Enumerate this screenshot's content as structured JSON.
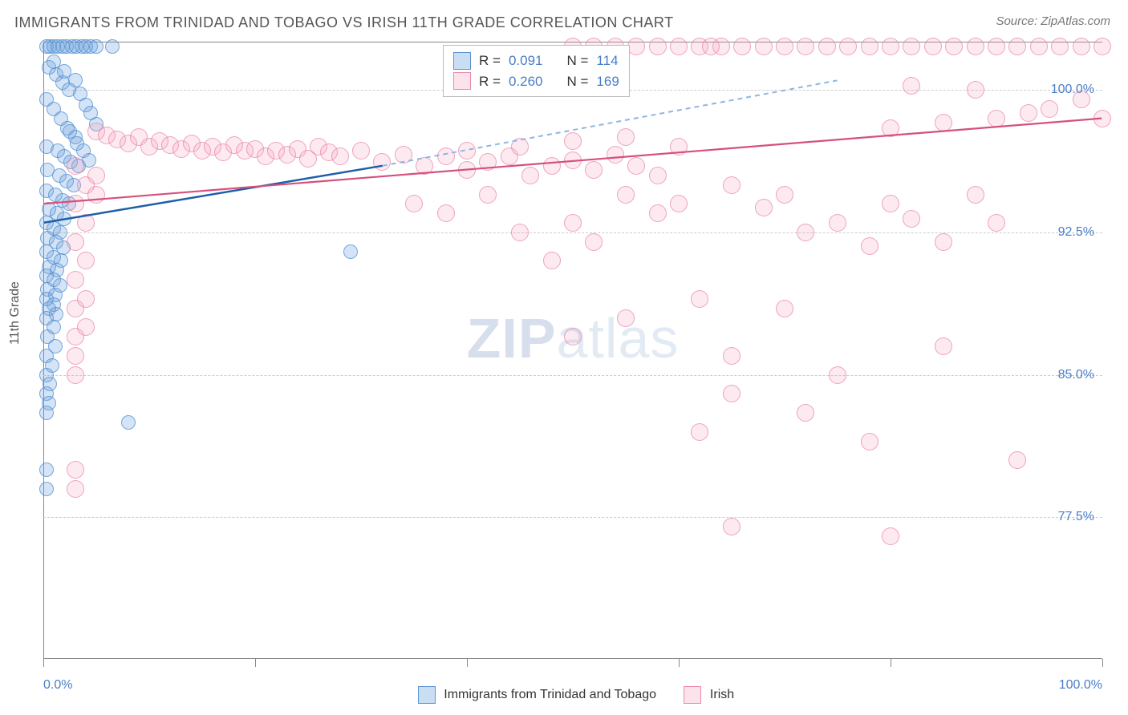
{
  "title": "IMMIGRANTS FROM TRINIDAD AND TOBAGO VS IRISH 11TH GRADE CORRELATION CHART",
  "source": "Source: ZipAtlas.com",
  "watermark_a": "ZIP",
  "watermark_b": "atlas",
  "chart": {
    "type": "scatter",
    "y_axis_title": "11th Grade",
    "background_color": "#ffffff",
    "grid_color": "#cccccc",
    "axis_color": "#888888",
    "tick_label_color": "#4a7dc7",
    "xlim": [
      0,
      100
    ],
    "ylim": [
      70,
      102.5
    ],
    "y_ticks": [
      77.5,
      85.0,
      92.5,
      100.0
    ],
    "y_tick_labels": [
      "77.5%",
      "85.0%",
      "92.5%",
      "100.0%"
    ],
    "x_ticks": [
      0,
      20,
      40,
      60,
      80,
      100
    ],
    "x_tick_labels_shown": {
      "0": "0.0%",
      "100": "100.0%"
    },
    "series": [
      {
        "name": "Immigrants from Trinidad and Tobago",
        "short": "a",
        "color_fill": "rgba(99,157,222,0.28)",
        "color_stroke": "rgba(79,139,207,0.7)",
        "marker_size": 18,
        "R": "0.091",
        "N": "114",
        "trend": {
          "x1": 0,
          "y1": 93.0,
          "x2": 32,
          "y2": 96.0,
          "extrap_x": 75,
          "extrap_y": 100.5,
          "color_solid": "#1d5fa8",
          "color_dash": "#8eb6e2"
        },
        "points": [
          [
            0.3,
            102.3
          ],
          [
            0.6,
            102.3
          ],
          [
            1.0,
            102.3
          ],
          [
            1.4,
            102.3
          ],
          [
            1.8,
            102.3
          ],
          [
            2.2,
            102.3
          ],
          [
            2.7,
            102.3
          ],
          [
            3.1,
            102.3
          ],
          [
            3.6,
            102.3
          ],
          [
            4.0,
            102.3
          ],
          [
            4.5,
            102.3
          ],
          [
            5.0,
            102.3
          ],
          [
            6.5,
            102.3
          ],
          [
            0.5,
            101.2
          ],
          [
            1.2,
            100.8
          ],
          [
            1.8,
            100.4
          ],
          [
            2.4,
            100.0
          ],
          [
            0.3,
            99.5
          ],
          [
            1.0,
            99.0
          ],
          [
            1.7,
            98.5
          ],
          [
            2.3,
            98.0
          ],
          [
            3.0,
            97.5
          ],
          [
            0.3,
            97.0
          ],
          [
            1.4,
            96.8
          ],
          [
            2.0,
            96.5
          ],
          [
            2.6,
            96.2
          ],
          [
            3.3,
            96.0
          ],
          [
            0.4,
            95.8
          ],
          [
            1.5,
            95.5
          ],
          [
            2.2,
            95.2
          ],
          [
            2.9,
            95.0
          ],
          [
            0.3,
            94.7
          ],
          [
            1.1,
            94.5
          ],
          [
            1.8,
            94.2
          ],
          [
            2.4,
            94.0
          ],
          [
            0.5,
            93.7
          ],
          [
            1.3,
            93.5
          ],
          [
            2.0,
            93.2
          ],
          [
            0.3,
            93.0
          ],
          [
            1.0,
            92.7
          ],
          [
            1.6,
            92.5
          ],
          [
            0.4,
            92.2
          ],
          [
            1.2,
            92.0
          ],
          [
            1.9,
            91.7
          ],
          [
            0.3,
            91.5
          ],
          [
            1.0,
            91.2
          ],
          [
            1.7,
            91.0
          ],
          [
            0.5,
            90.7
          ],
          [
            1.3,
            90.5
          ],
          [
            0.3,
            90.2
          ],
          [
            1.0,
            90.0
          ],
          [
            1.6,
            89.7
          ],
          [
            0.4,
            89.5
          ],
          [
            1.1,
            89.2
          ],
          [
            0.3,
            89.0
          ],
          [
            1.0,
            88.7
          ],
          [
            0.5,
            88.5
          ],
          [
            1.2,
            88.2
          ],
          [
            0.3,
            88.0
          ],
          [
            1.0,
            87.5
          ],
          [
            0.4,
            87.0
          ],
          [
            1.1,
            86.5
          ],
          [
            0.3,
            86.0
          ],
          [
            0.8,
            85.5
          ],
          [
            0.3,
            85.0
          ],
          [
            0.6,
            84.5
          ],
          [
            0.3,
            84.0
          ],
          [
            0.5,
            83.5
          ],
          [
            0.3,
            83.0
          ],
          [
            8.0,
            82.5
          ],
          [
            0.3,
            80.0
          ],
          [
            0.3,
            79.0
          ],
          [
            1.0,
            101.5
          ],
          [
            2.0,
            101.0
          ],
          [
            3.0,
            100.5
          ],
          [
            3.5,
            99.8
          ],
          [
            4.0,
            99.2
          ],
          [
            4.5,
            98.8
          ],
          [
            5.0,
            98.2
          ],
          [
            2.5,
            97.8
          ],
          [
            3.2,
            97.2
          ],
          [
            3.8,
            96.8
          ],
          [
            4.3,
            96.3
          ],
          [
            29.0,
            91.5
          ]
        ]
      },
      {
        "name": "Irish",
        "short": "b",
        "color_fill": "rgba(245,160,190,0.22)",
        "color_stroke": "rgba(232,122,158,0.65)",
        "marker_size": 22,
        "R": "0.260",
        "N": "169",
        "trend": {
          "x1": 0,
          "y1": 94.0,
          "x2": 100,
          "y2": 98.5,
          "color_solid": "#d6507c"
        },
        "points": [
          [
            58,
            102.3
          ],
          [
            60,
            102.3
          ],
          [
            62,
            102.3
          ],
          [
            64,
            102.3
          ],
          [
            66,
            102.3
          ],
          [
            68,
            102.3
          ],
          [
            70,
            102.3
          ],
          [
            72,
            102.3
          ],
          [
            74,
            102.3
          ],
          [
            76,
            102.3
          ],
          [
            78,
            102.3
          ],
          [
            80,
            102.3
          ],
          [
            82,
            102.3
          ],
          [
            84,
            102.3
          ],
          [
            86,
            102.3
          ],
          [
            88,
            102.3
          ],
          [
            90,
            102.3
          ],
          [
            92,
            102.3
          ],
          [
            94,
            102.3
          ],
          [
            96,
            102.3
          ],
          [
            98,
            102.3
          ],
          [
            100,
            102.3
          ],
          [
            56,
            102.3
          ],
          [
            54,
            102.3
          ],
          [
            52,
            102.3
          ],
          [
            50,
            102.3
          ],
          [
            63,
            102.3
          ],
          [
            100,
            98.5
          ],
          [
            98,
            99.5
          ],
          [
            95,
            99.0
          ],
          [
            93,
            98.8
          ],
          [
            90,
            98.5
          ],
          [
            88,
            100.0
          ],
          [
            85,
            98.3
          ],
          [
            82,
            100.2
          ],
          [
            80,
            98.0
          ],
          [
            5,
            97.8
          ],
          [
            6,
            97.6
          ],
          [
            7,
            97.4
          ],
          [
            8,
            97.2
          ],
          [
            9,
            97.5
          ],
          [
            10,
            97.0
          ],
          [
            11,
            97.3
          ],
          [
            12,
            97.1
          ],
          [
            13,
            96.9
          ],
          [
            14,
            97.2
          ],
          [
            15,
            96.8
          ],
          [
            16,
            97.0
          ],
          [
            17,
            96.7
          ],
          [
            18,
            97.1
          ],
          [
            19,
            96.8
          ],
          [
            20,
            96.9
          ],
          [
            21,
            96.5
          ],
          [
            22,
            96.8
          ],
          [
            23,
            96.6
          ],
          [
            24,
            96.9
          ],
          [
            25,
            96.4
          ],
          [
            26,
            97.0
          ],
          [
            27,
            96.7
          ],
          [
            28,
            96.5
          ],
          [
            30,
            96.8
          ],
          [
            32,
            96.2
          ],
          [
            34,
            96.6
          ],
          [
            36,
            96.0
          ],
          [
            38,
            96.5
          ],
          [
            40,
            95.8
          ],
          [
            42,
            96.2
          ],
          [
            44,
            96.5
          ],
          [
            46,
            95.5
          ],
          [
            48,
            96.0
          ],
          [
            50,
            96.3
          ],
          [
            52,
            95.8
          ],
          [
            54,
            96.6
          ],
          [
            56,
            96.0
          ],
          [
            58,
            95.5
          ],
          [
            40,
            96.8
          ],
          [
            45,
            97.0
          ],
          [
            50,
            97.3
          ],
          [
            55,
            97.5
          ],
          [
            60,
            97.0
          ],
          [
            35,
            94.0
          ],
          [
            38,
            93.5
          ],
          [
            42,
            94.5
          ],
          [
            45,
            92.5
          ],
          [
            48,
            91.0
          ],
          [
            50,
            93.0
          ],
          [
            52,
            92.0
          ],
          [
            55,
            94.5
          ],
          [
            58,
            93.5
          ],
          [
            60,
            94.0
          ],
          [
            65,
            95.0
          ],
          [
            68,
            93.8
          ],
          [
            70,
            94.5
          ],
          [
            72,
            92.5
          ],
          [
            75,
            93.0
          ],
          [
            78,
            91.8
          ],
          [
            80,
            94.0
          ],
          [
            82,
            93.2
          ],
          [
            85,
            92.0
          ],
          [
            88,
            94.5
          ],
          [
            90,
            93.0
          ],
          [
            62,
            89.0
          ],
          [
            70,
            88.5
          ],
          [
            55,
            88.0
          ],
          [
            65,
            86.0
          ],
          [
            75,
            85.0
          ],
          [
            85,
            86.5
          ],
          [
            50,
            87.0
          ],
          [
            3,
            96.0
          ],
          [
            3,
            94.0
          ],
          [
            3,
            92.0
          ],
          [
            3,
            90.0
          ],
          [
            3,
            88.5
          ],
          [
            3,
            87.0
          ],
          [
            3,
            86.0
          ],
          [
            3,
            85.0
          ],
          [
            3,
            80.0
          ],
          [
            3,
            79.0
          ],
          [
            4,
            95.0
          ],
          [
            4,
            93.0
          ],
          [
            4,
            91.0
          ],
          [
            4,
            89.0
          ],
          [
            4,
            87.5
          ],
          [
            5,
            95.5
          ],
          [
            5,
            94.5
          ],
          [
            65,
            77.0
          ],
          [
            80,
            76.5
          ],
          [
            78,
            81.5
          ],
          [
            62,
            82.0
          ],
          [
            92,
            80.5
          ],
          [
            65,
            84.0
          ],
          [
            72,
            83.0
          ]
        ]
      }
    ]
  },
  "legend_top": {
    "rows": [
      {
        "swatch": "a",
        "R_label": "R =",
        "R_val": "0.091",
        "N_label": "N =",
        "N_val": "114"
      },
      {
        "swatch": "b",
        "R_label": "R =",
        "R_val": "0.260",
        "N_label": "N =",
        "N_val": "169"
      }
    ]
  },
  "legend_bottom": {
    "items": [
      {
        "swatch": "a",
        "label": "Immigrants from Trinidad and Tobago"
      },
      {
        "swatch": "b",
        "label": "Irish"
      }
    ]
  }
}
